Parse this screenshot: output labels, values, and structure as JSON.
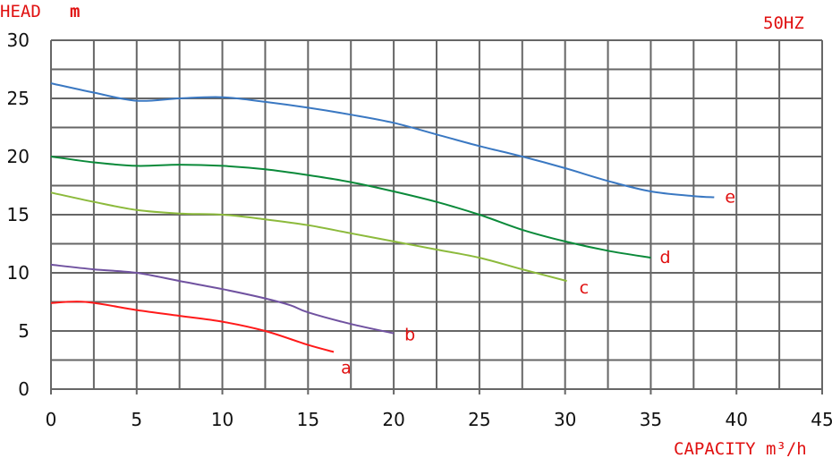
{
  "chart_data": {
    "type": "line",
    "title": "",
    "ylabel": "HEAD",
    "ylabel_unit": "m",
    "xlabel": "CAPACITY m³/h",
    "annotation": "50HZ",
    "xlim": [
      0,
      45
    ],
    "ylim": [
      0,
      30
    ],
    "x_ticks": [
      "0",
      "5",
      "10",
      "15",
      "20",
      "25",
      "30",
      "35",
      "40",
      "45"
    ],
    "y_ticks": [
      "0",
      "5",
      "10",
      "15",
      "20",
      "25",
      "30"
    ],
    "grid": true,
    "grid_step_x": 2.5,
    "grid_step_y": 2.5,
    "series": [
      {
        "name": "a",
        "color": "#ff1a1a",
        "points": [
          [
            0,
            7.4
          ],
          [
            2,
            7.5
          ],
          [
            5,
            6.8
          ],
          [
            7.5,
            6.3
          ],
          [
            10,
            5.8
          ],
          [
            12.5,
            5.0
          ],
          [
            15,
            3.8
          ],
          [
            16.5,
            3.2
          ]
        ]
      },
      {
        "name": "b",
        "color": "#7052a0",
        "points": [
          [
            0,
            10.7
          ],
          [
            2.5,
            10.3
          ],
          [
            5,
            10.0
          ],
          [
            7.5,
            9.3
          ],
          [
            10,
            8.6
          ],
          [
            12.5,
            7.8
          ],
          [
            14,
            7.2
          ],
          [
            15,
            6.6
          ],
          [
            17.5,
            5.6
          ],
          [
            20,
            4.8
          ]
        ]
      },
      {
        "name": "c",
        "color": "#8cba3c",
        "points": [
          [
            0,
            16.9
          ],
          [
            2.5,
            16.1
          ],
          [
            5,
            15.4
          ],
          [
            7.5,
            15.1
          ],
          [
            10,
            15.0
          ],
          [
            12.5,
            14.6
          ],
          [
            15,
            14.1
          ],
          [
            17.5,
            13.4
          ],
          [
            20,
            12.7
          ],
          [
            22.5,
            12.0
          ],
          [
            25,
            11.3
          ],
          [
            27.5,
            10.3
          ],
          [
            30.1,
            9.3
          ]
        ]
      },
      {
        "name": "d",
        "color": "#0b8a3a",
        "points": [
          [
            0,
            20.0
          ],
          [
            2.5,
            19.5
          ],
          [
            5,
            19.2
          ],
          [
            7.5,
            19.3
          ],
          [
            10,
            19.2
          ],
          [
            12.5,
            18.9
          ],
          [
            15,
            18.4
          ],
          [
            17.5,
            17.8
          ],
          [
            20,
            17.0
          ],
          [
            22.5,
            16.1
          ],
          [
            25,
            15.0
          ],
          [
            27.5,
            13.7
          ],
          [
            30,
            12.7
          ],
          [
            32.5,
            11.9
          ],
          [
            35,
            11.3
          ]
        ]
      },
      {
        "name": "e",
        "color": "#3a78c2",
        "points": [
          [
            0,
            26.3
          ],
          [
            2.5,
            25.5
          ],
          [
            5,
            24.8
          ],
          [
            7.5,
            25.0
          ],
          [
            10,
            25.1
          ],
          [
            12.5,
            24.7
          ],
          [
            15,
            24.2
          ],
          [
            17.5,
            23.6
          ],
          [
            20,
            22.9
          ],
          [
            22.5,
            21.9
          ],
          [
            25,
            20.9
          ],
          [
            27.5,
            20.0
          ],
          [
            30,
            19.0
          ],
          [
            32.5,
            17.9
          ],
          [
            35,
            17.0
          ],
          [
            37.5,
            16.6
          ],
          [
            38.7,
            16.5
          ]
        ]
      }
    ]
  }
}
